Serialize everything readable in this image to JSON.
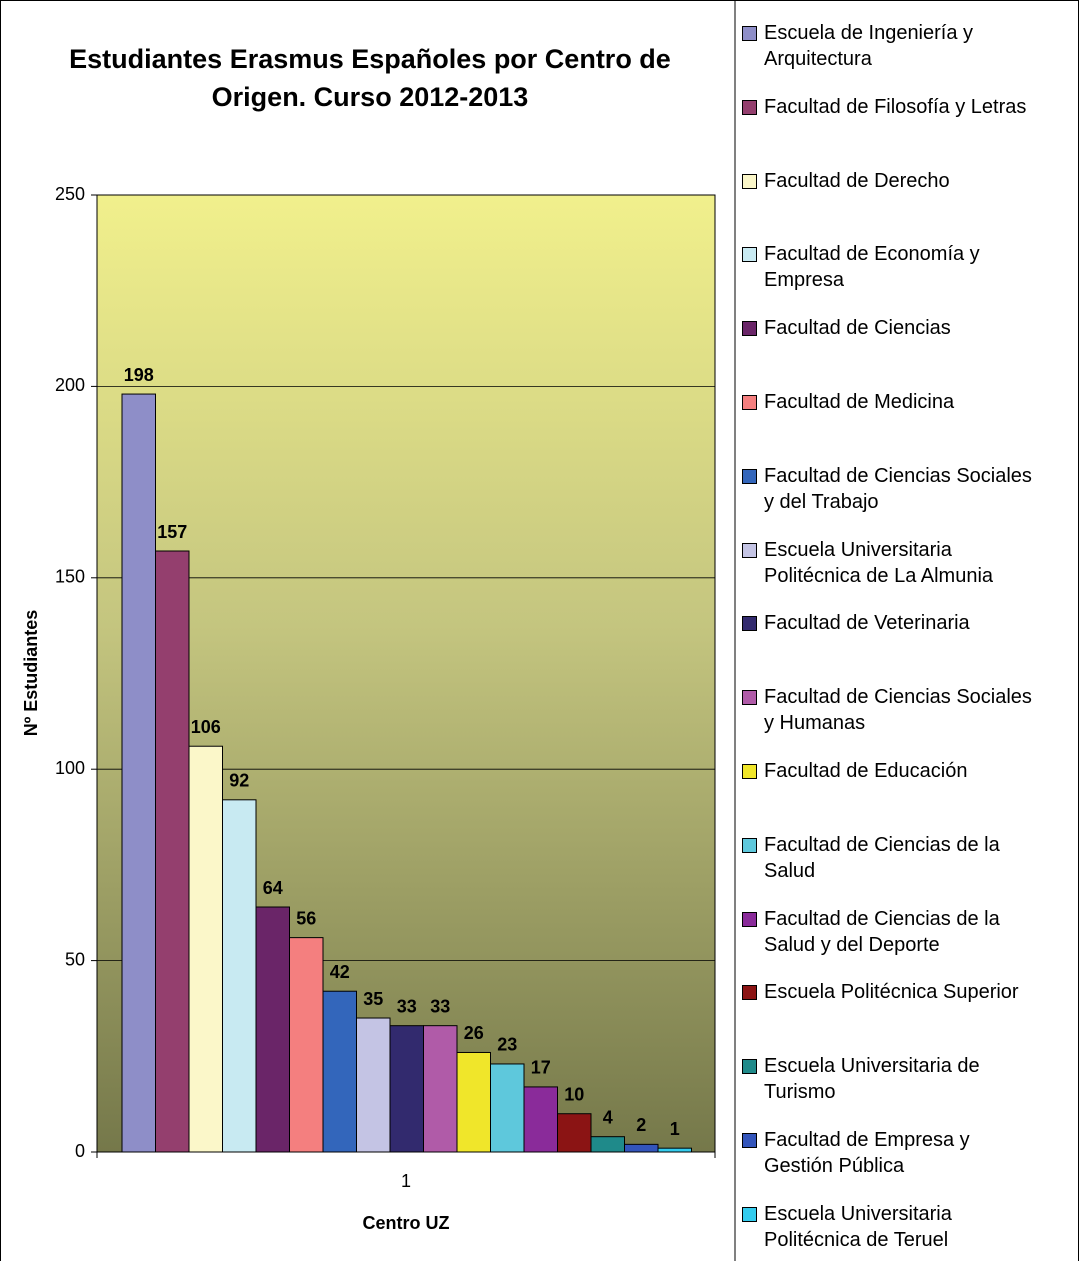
{
  "chart_data": {
    "type": "bar",
    "title": "Estudiantes Erasmus Españoles por Centro de Origen. Curso 2012-2013",
    "x_label": "Centro UZ",
    "y_label": "Nº Estudiantes",
    "categories": [
      "1"
    ],
    "ylim": [
      0,
      250
    ],
    "yticks": [
      0,
      50,
      100,
      150,
      200,
      250
    ],
    "grid": true,
    "legend": "right",
    "series": [
      {
        "name": "Escuela de Ingeniería y Arquitectura",
        "color": "#8e8ec8",
        "values": [
          198
        ]
      },
      {
        "name": "Facultad de Filosofía y Letras",
        "color": "#943f6e",
        "values": [
          157
        ]
      },
      {
        "name": "Facultad de Derecho",
        "color": "#fbf7c9",
        "values": [
          106
        ]
      },
      {
        "name": "Facultad de Economía y Empresa",
        "color": "#c8eaf2",
        "values": [
          92
        ]
      },
      {
        "name": "Facultad de Ciencias",
        "color": "#6a2568",
        "values": [
          64
        ]
      },
      {
        "name": "Facultad de Medicina",
        "color": "#f47f7f",
        "values": [
          56
        ]
      },
      {
        "name": "Facultad de Ciencias Sociales y del Trabajo",
        "color": "#3366bb",
        "values": [
          42
        ]
      },
      {
        "name": "Escuela Universitaria Politécnica de La Almunia",
        "color": "#c4c4e4",
        "values": [
          35
        ]
      },
      {
        "name": "Facultad de Veterinaria",
        "color": "#322a6e",
        "values": [
          33
        ]
      },
      {
        "name": "Facultad de Ciencias Sociales y Humanas",
        "color": "#b05ba8",
        "values": [
          33
        ]
      },
      {
        "name": "Facultad de Educación",
        "color": "#f0e62a",
        "values": [
          26
        ]
      },
      {
        "name": "Facultad de Ciencias de la Salud",
        "color": "#5ec8dc",
        "values": [
          23
        ]
      },
      {
        "name": "Facultad de Ciencias de la Salud y del Deporte",
        "color": "#8a2b9a",
        "values": [
          17
        ]
      },
      {
        "name": "Escuela Politécnica Superior",
        "color": "#8b1414",
        "values": [
          10
        ]
      },
      {
        "name": "Escuela Universitaria de Turismo",
        "color": "#1f8a8a",
        "values": [
          4
        ]
      },
      {
        "name": "Facultad de Empresa y Gestión Pública",
        "color": "#3355bb",
        "values": [
          2
        ]
      },
      {
        "name": "Escuela Universitaria Politécnica de Teruel",
        "color": "#33ccee",
        "values": [
          1
        ]
      }
    ]
  }
}
